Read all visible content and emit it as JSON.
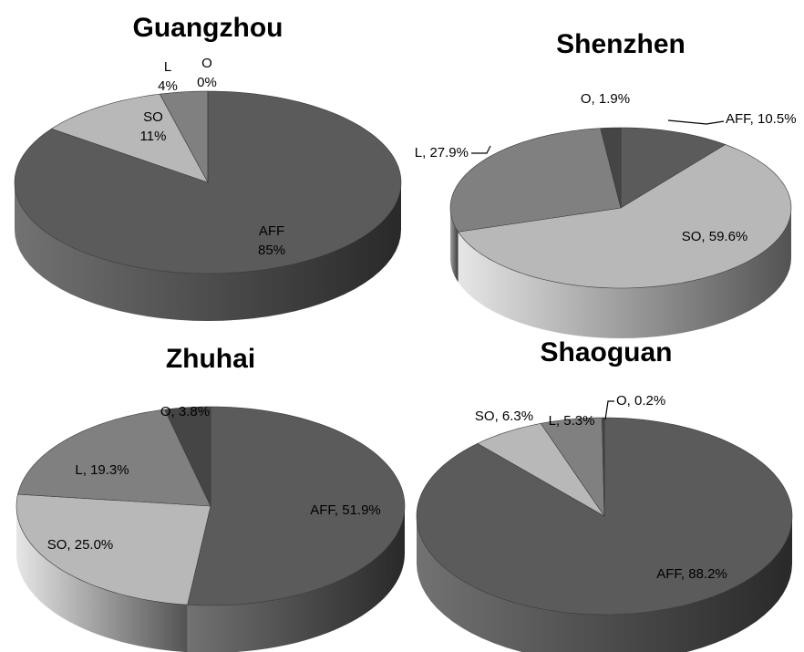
{
  "chart_data": [
    {
      "type": "pie",
      "title": "Guangzhou",
      "series": [
        {
          "name": "AFF",
          "value": 85
        },
        {
          "name": "SO",
          "value": 11
        },
        {
          "name": "L",
          "value": 4
        },
        {
          "name": "O",
          "value": 0
        }
      ],
      "labels": [
        {
          "lines": [
            "AFF",
            "85%"
          ]
        },
        {
          "lines": [
            "SO",
            "11%"
          ]
        },
        {
          "lines": [
            "L",
            "4%"
          ]
        },
        {
          "lines": [
            "O",
            "0%"
          ]
        }
      ]
    },
    {
      "type": "pie",
      "title": "Shenzhen",
      "series": [
        {
          "name": "AFF",
          "value": 10.5
        },
        {
          "name": "SO",
          "value": 59.6
        },
        {
          "name": "L",
          "value": 27.9
        },
        {
          "name": "O",
          "value": 1.9
        }
      ],
      "labels": [
        {
          "lines": [
            "AFF, 10.5%"
          ]
        },
        {
          "lines": [
            "SO, 59.6%"
          ]
        },
        {
          "lines": [
            "L, 27.9%"
          ]
        },
        {
          "lines": [
            "O, 1.9%"
          ]
        }
      ]
    },
    {
      "type": "pie",
      "title": "Zhuhai",
      "series": [
        {
          "name": "AFF",
          "value": 51.9
        },
        {
          "name": "SO",
          "value": 25.0
        },
        {
          "name": "L",
          "value": 19.3
        },
        {
          "name": "O",
          "value": 3.8
        }
      ],
      "labels": [
        {
          "lines": [
            "AFF, 51.9%"
          ]
        },
        {
          "lines": [
            "SO, 25.0%"
          ]
        },
        {
          "lines": [
            "L, 19.3%"
          ]
        },
        {
          "lines": [
            "O, 3.8%"
          ]
        }
      ]
    },
    {
      "type": "pie",
      "title": "Shaoguan",
      "series": [
        {
          "name": "AFF",
          "value": 88.2
        },
        {
          "name": "SO",
          "value": 6.3
        },
        {
          "name": "L",
          "value": 5.3
        },
        {
          "name": "O",
          "value": 0.2
        }
      ],
      "labels": [
        {
          "lines": [
            "AFF, 88.2%"
          ]
        },
        {
          "lines": [
            "SO, 6.3%"
          ]
        },
        {
          "lines": [
            "L, 5.3%"
          ]
        },
        {
          "lines": [
            "O, 0.2%"
          ]
        }
      ]
    }
  ],
  "colors": {
    "AFF": "#5b5b5b",
    "SO": "#b8b8b8",
    "L": "#808080",
    "O": "#454545"
  }
}
